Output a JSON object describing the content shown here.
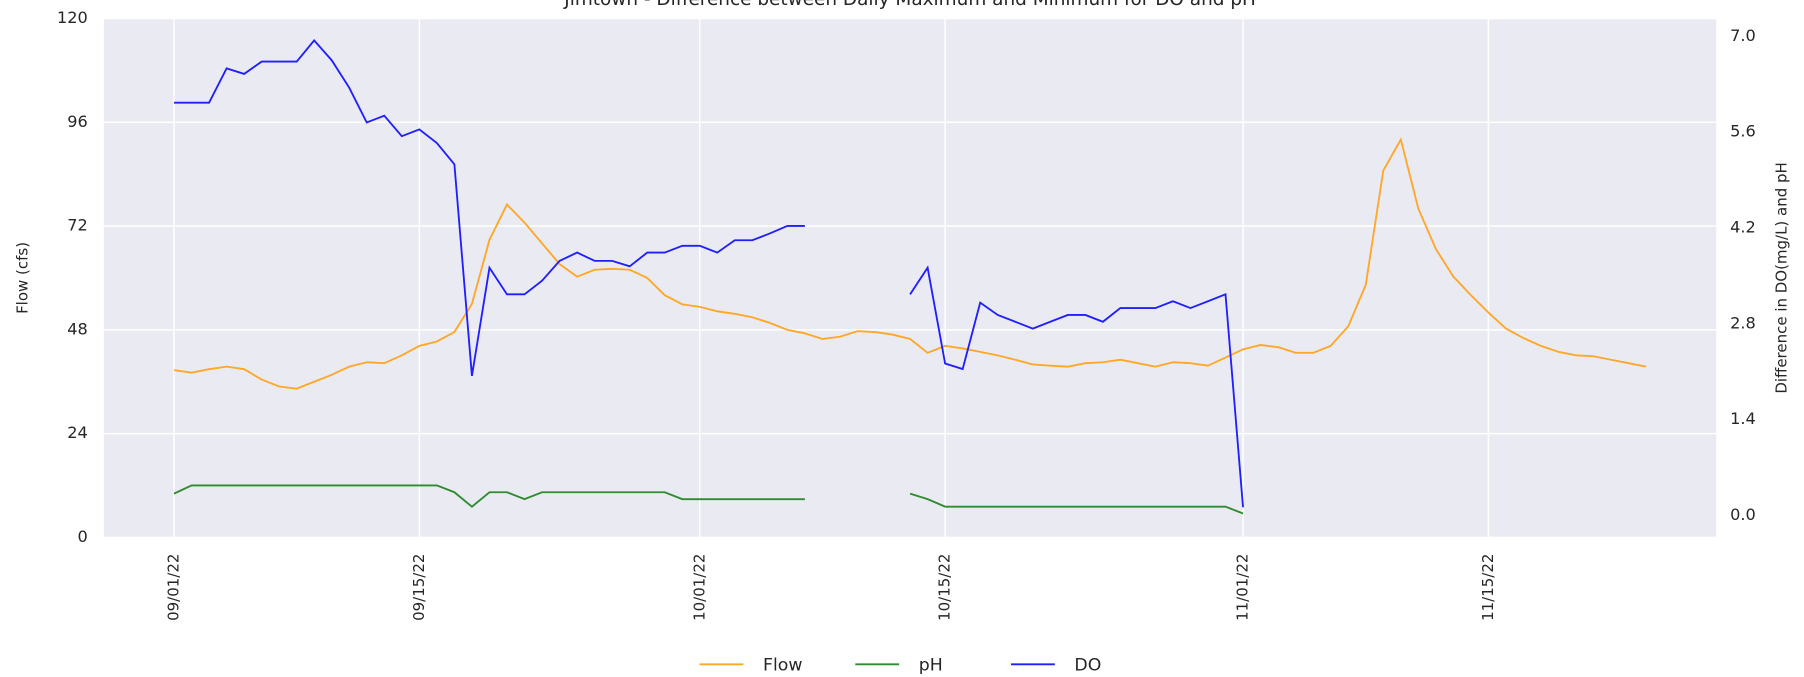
{
  "chart_data": {
    "type": "line",
    "title": "Jimtown - Difference between Daily Maximum and Minimum for DO and pH",
    "y_label": "Flow (cfs)",
    "y2_label": "Difference in DO(mg/L) and pH",
    "x": [
      "2022-09-01",
      "2022-09-02",
      "2022-09-03",
      "2022-09-04",
      "2022-09-05",
      "2022-09-06",
      "2022-09-07",
      "2022-09-08",
      "2022-09-09",
      "2022-09-10",
      "2022-09-11",
      "2022-09-12",
      "2022-09-13",
      "2022-09-14",
      "2022-09-15",
      "2022-09-16",
      "2022-09-17",
      "2022-09-18",
      "2022-09-19",
      "2022-09-20",
      "2022-09-21",
      "2022-09-22",
      "2022-09-23",
      "2022-09-24",
      "2022-09-25",
      "2022-09-26",
      "2022-09-27",
      "2022-09-28",
      "2022-09-29",
      "2022-09-30",
      "2022-10-01",
      "2022-10-02",
      "2022-10-03",
      "2022-10-04",
      "2022-10-05",
      "2022-10-06",
      "2022-10-07",
      "2022-10-08",
      "2022-10-09",
      "2022-10-10",
      "2022-10-11",
      "2022-10-12",
      "2022-10-13",
      "2022-10-14",
      "2022-10-15",
      "2022-10-16",
      "2022-10-17",
      "2022-10-18",
      "2022-10-19",
      "2022-10-20",
      "2022-10-21",
      "2022-10-22",
      "2022-10-23",
      "2022-10-24",
      "2022-10-25",
      "2022-10-26",
      "2022-10-27",
      "2022-10-28",
      "2022-10-29",
      "2022-10-30",
      "2022-10-31",
      "2022-11-01",
      "2022-11-02",
      "2022-11-03",
      "2022-11-04",
      "2022-11-05",
      "2022-11-06",
      "2022-11-07",
      "2022-11-08",
      "2022-11-09",
      "2022-11-10",
      "2022-11-11",
      "2022-11-12",
      "2022-11-13",
      "2022-11-14",
      "2022-11-15",
      "2022-11-16",
      "2022-11-17",
      "2022-11-18",
      "2022-11-19",
      "2022-11-20",
      "2022-11-21",
      "2022-11-22",
      "2022-11-23",
      "2022-11-24"
    ],
    "series": [
      {
        "name": "Flow",
        "color": "#ffa726",
        "axis": "y",
        "values": [
          38.7,
          38.1,
          38.9,
          39.5,
          38.9,
          36.5,
          34.9,
          34.4,
          36,
          37.6,
          39.5,
          40.5,
          40.3,
          42.1,
          44.3,
          45.3,
          47.5,
          54,
          68.8,
          77,
          72.8,
          68,
          63.2,
          60.3,
          61.9,
          62.1,
          61.9,
          60,
          56,
          53.9,
          53.3,
          52.3,
          51.7,
          50.9,
          49.6,
          48,
          47.2,
          45.9,
          46.4,
          47.7,
          47.5,
          46.9,
          45.9,
          42.7,
          44.3,
          43.7,
          42.9,
          42.1,
          41.1,
          40,
          39.7,
          39.5,
          40.3,
          40.5,
          41.1,
          40.3,
          39.5,
          40.5,
          40.3,
          39.7,
          41.6,
          43.5,
          44.5,
          44,
          42.7,
          42.7,
          44.3,
          48.8,
          58.4,
          84.8,
          92,
          76,
          66.7,
          60.3,
          56,
          52,
          48.3,
          46.1,
          44.3,
          42.9,
          42.1,
          41.9,
          41.1,
          40.3,
          39.5
        ]
      },
      {
        "name": "pH",
        "color": "#2e8b2e",
        "axis": "y2",
        "values": [
          0.32,
          0.44,
          0.44,
          0.44,
          0.44,
          0.44,
          0.44,
          0.44,
          0.44,
          0.44,
          0.44,
          0.44,
          0.44,
          0.44,
          0.44,
          0.44,
          0.34,
          0.13,
          0.34,
          0.34,
          0.24,
          0.34,
          0.34,
          0.34,
          0.34,
          0.34,
          0.34,
          0.34,
          0.34,
          0.24,
          0.24,
          0.24,
          0.24,
          0.24,
          0.24,
          0.24,
          0.24,
          null,
          null,
          null,
          null,
          null,
          0.32,
          0.24,
          0.13,
          0.13,
          0.13,
          0.13,
          0.13,
          0.13,
          0.13,
          0.13,
          0.13,
          0.13,
          0.13,
          0.13,
          0.13,
          0.13,
          0.13,
          0.13,
          0.13,
          0.03,
          null,
          null,
          null,
          null,
          null,
          null,
          null,
          null,
          null,
          null,
          null,
          null,
          null,
          null,
          null,
          null,
          null,
          null,
          null,
          null,
          null,
          null,
          null
        ]
      },
      {
        "name": "DO",
        "color": "#1f1fff",
        "axis": "y2",
        "values": [
          6.03,
          6.03,
          6.03,
          6.53,
          6.45,
          6.63,
          6.63,
          6.63,
          6.94,
          6.65,
          6.25,
          5.74,
          5.84,
          5.54,
          5.64,
          5.44,
          5.13,
          2.04,
          3.62,
          3.23,
          3.23,
          3.43,
          3.72,
          3.84,
          3.72,
          3.72,
          3.64,
          3.84,
          3.84,
          3.94,
          3.94,
          3.84,
          4.02,
          4.02,
          4.12,
          4.23,
          4.23,
          null,
          null,
          null,
          null,
          null,
          3.23,
          3.62,
          2.22,
          2.14,
          3.11,
          2.93,
          2.83,
          2.73,
          2.83,
          2.93,
          2.93,
          2.83,
          3.03,
          3.03,
          3.03,
          3.13,
          3.03,
          3.13,
          3.23,
          0.12,
          null,
          null,
          null,
          null,
          null,
          null,
          null,
          null,
          null,
          null,
          null,
          null,
          null,
          null,
          null,
          null,
          null,
          null,
          null,
          null,
          null,
          null,
          null
        ]
      }
    ],
    "xlim": [
      "2022-08-28",
      "2022-11-28"
    ],
    "xticks": [
      {
        "value": "2022-09-01",
        "label": "09/01/22"
      },
      {
        "value": "2022-09-15",
        "label": "09/15/22"
      },
      {
        "value": "2022-10-01",
        "label": "10/01/22"
      },
      {
        "value": "2022-10-15",
        "label": "10/15/22"
      },
      {
        "value": "2022-11-01",
        "label": "11/01/22"
      },
      {
        "value": "2022-11-15",
        "label": "11/15/22"
      }
    ],
    "ylim": [
      0,
      120
    ],
    "yticks": [
      0,
      24,
      48,
      72,
      96,
      120
    ],
    "y2lim": [
      -0.32,
      7.26
    ],
    "y2ticks": [
      {
        "value": 0,
        "label": "0.0"
      },
      1.4,
      2.8,
      4.2,
      5.6,
      {
        "value": 7,
        "label": "7.0"
      }
    ],
    "grid": true,
    "legend": "lower center"
  }
}
